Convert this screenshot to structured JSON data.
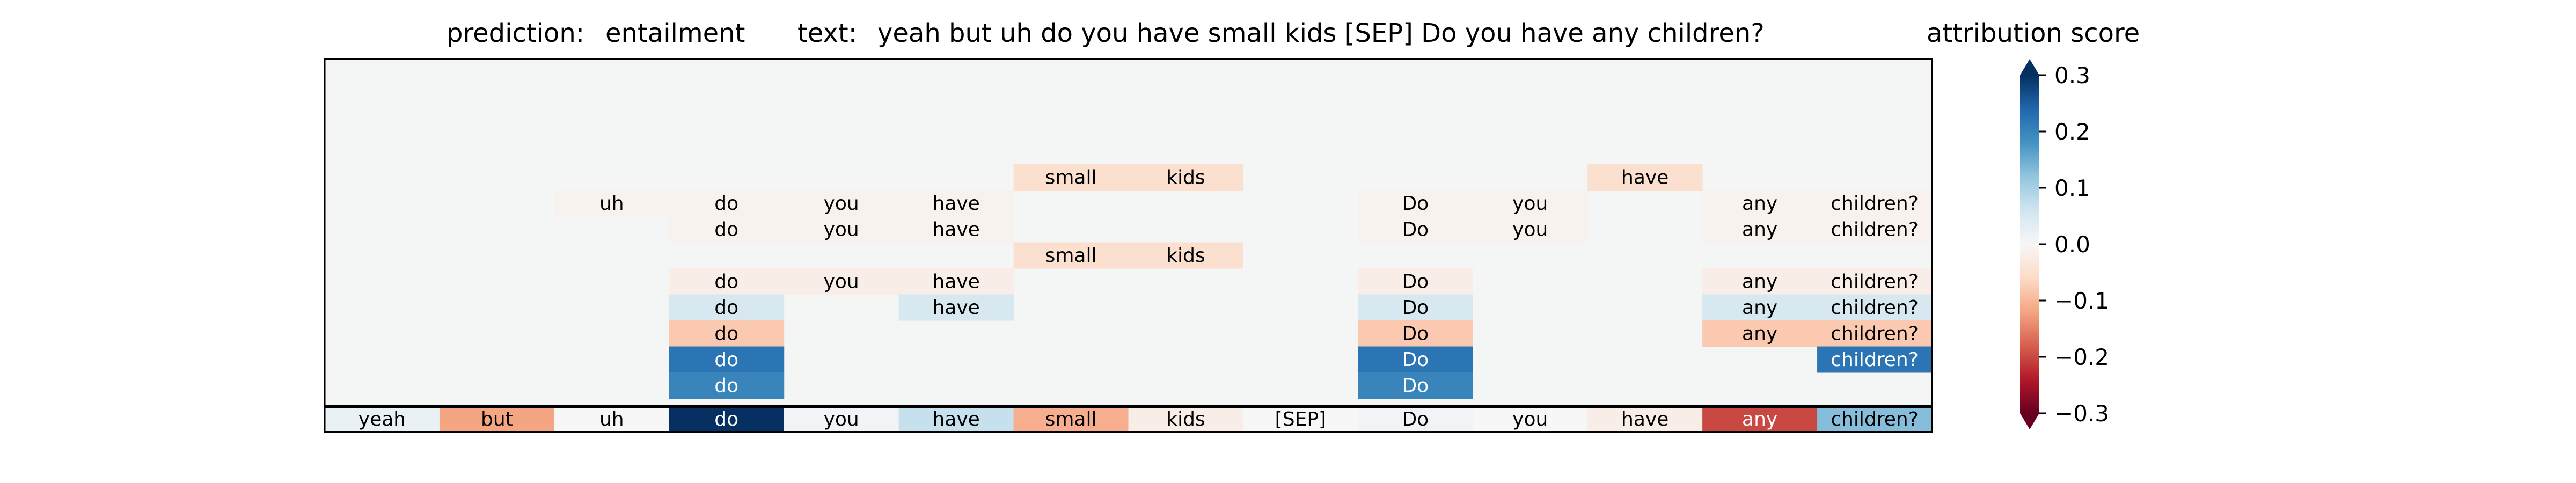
{
  "title": {
    "prediction_label": "prediction:",
    "prediction_value": "entailment",
    "text_label": "text:",
    "text_value": "yeah but uh do you have small kids [SEP] Do you have any children?"
  },
  "colorbar": {
    "title": "attribution score",
    "ticks": [
      "0.3",
      "0.2",
      "0.1",
      "0.0",
      "−0.1",
      "−0.2",
      "−0.3"
    ],
    "tick_values": [
      0.3,
      0.2,
      0.1,
      0.0,
      -0.1,
      -0.2,
      -0.3
    ],
    "colormap": "RdBu"
  },
  "chart_data": {
    "type": "heatmap",
    "tokens": [
      "yeah",
      "but",
      "uh",
      "do",
      "you",
      "have",
      "small",
      "kids",
      "[SEP]",
      "Do",
      "you",
      "have",
      "any",
      "children?"
    ],
    "base_row": [
      0.02,
      -0.12,
      0.0,
      0.3,
      0.01,
      0.07,
      -0.11,
      -0.02,
      0.0,
      0.01,
      0.0,
      -0.02,
      -0.2,
      0.13
    ],
    "rows": [
      [
        null,
        null,
        null,
        null,
        null,
        null,
        -0.05,
        -0.05,
        null,
        null,
        null,
        -0.05,
        null,
        null
      ],
      [
        null,
        null,
        -0.01,
        -0.01,
        -0.01,
        -0.01,
        null,
        null,
        null,
        -0.01,
        -0.01,
        null,
        -0.01,
        -0.01
      ],
      [
        null,
        null,
        null,
        -0.01,
        -0.01,
        -0.01,
        null,
        null,
        null,
        -0.01,
        -0.01,
        null,
        -0.01,
        -0.01
      ],
      [
        null,
        null,
        null,
        null,
        null,
        null,
        -0.05,
        -0.05,
        null,
        null,
        null,
        null,
        null,
        null
      ],
      [
        null,
        null,
        null,
        -0.02,
        -0.02,
        -0.02,
        null,
        null,
        null,
        -0.02,
        null,
        null,
        -0.02,
        -0.02
      ],
      [
        null,
        null,
        null,
        0.05,
        null,
        0.05,
        null,
        null,
        null,
        0.05,
        null,
        null,
        0.05,
        0.05
      ],
      [
        null,
        null,
        null,
        -0.08,
        null,
        null,
        null,
        null,
        null,
        -0.08,
        null,
        null,
        -0.08,
        -0.08
      ],
      [
        null,
        null,
        null,
        0.22,
        null,
        null,
        null,
        null,
        null,
        0.22,
        null,
        null,
        null,
        0.22
      ],
      [
        null,
        null,
        null,
        0.2,
        null,
        null,
        null,
        null,
        null,
        0.2,
        null,
        null,
        null,
        null
      ]
    ],
    "vmin": -0.3,
    "vmax": 0.3
  }
}
